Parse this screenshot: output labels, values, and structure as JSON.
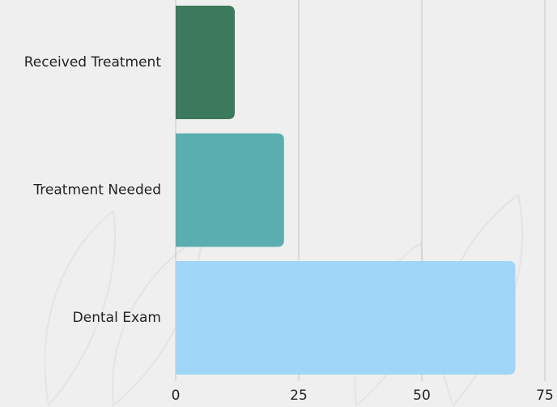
{
  "chart_data": {
    "type": "bar",
    "orientation": "horizontal",
    "categories": [
      "Received Treatment",
      "Treatment Needed",
      "Dental Exam"
    ],
    "values": [
      12,
      22,
      69
    ],
    "colors": [
      "#3b7a5a",
      "#5aaeb0",
      "#9fd6f8"
    ],
    "xlim": [
      0,
      75
    ],
    "xticks": [
      0,
      25,
      50,
      75
    ],
    "grid": true
  }
}
